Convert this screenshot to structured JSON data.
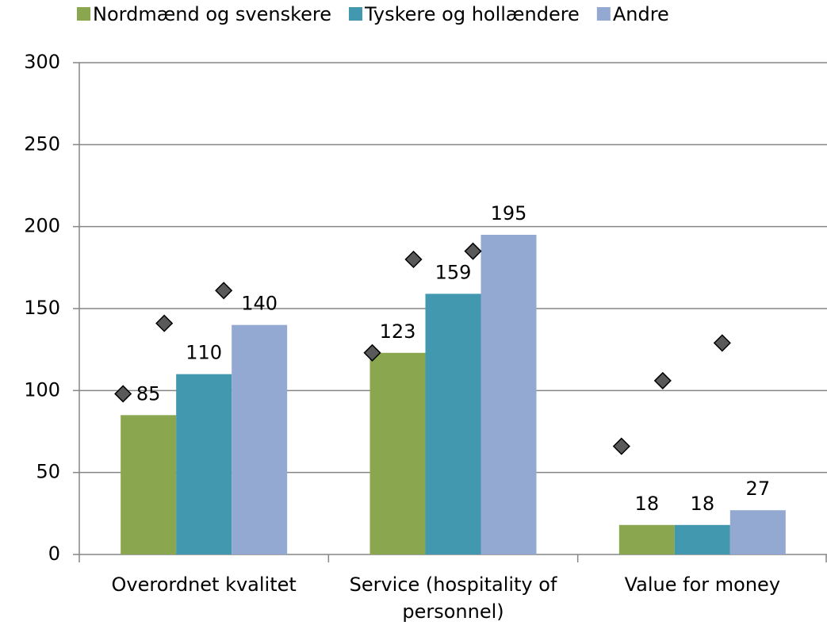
{
  "chart_data": {
    "type": "bar",
    "categories": [
      "Overordnet kvalitet",
      "Service (hospitality of personnel)",
      "Value for money"
    ],
    "series": [
      {
        "name": "Nordmænd og svenskere",
        "color": "#8aa64e",
        "values": [
          85,
          123,
          18
        ]
      },
      {
        "name": "Tyskere og hollændere",
        "color": "#4198af",
        "values": [
          110,
          159,
          18
        ]
      },
      {
        "name": "Andre",
        "color": "#94a9d2",
        "values": [
          140,
          195,
          27
        ]
      }
    ],
    "markers": [
      {
        "color": "#595959",
        "values": [
          98,
          123,
          66
        ]
      },
      {
        "color": "#595959",
        "values": [
          141,
          180,
          106
        ]
      },
      {
        "color": "#595959",
        "values": [
          161,
          185,
          129
        ]
      }
    ],
    "ylim": [
      0,
      300
    ],
    "yticks": [
      0,
      50,
      100,
      150,
      200,
      250,
      300
    ],
    "grid": true,
    "legend": "top"
  }
}
